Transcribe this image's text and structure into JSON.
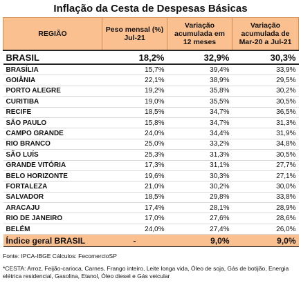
{
  "title": "Inflação da Cesta de Despesas Básicas",
  "headers": {
    "region": "REGIÃO",
    "weight": "Peso mensal (%) Jul-21",
    "var12": "Variação acumulada em 12 meses",
    "varMar": "Variação acumulada de Mar-20 a Jul-21"
  },
  "brasil": {
    "name": "BRASIL",
    "weight": "18,2%",
    "var12": "32,9%",
    "varMar": "30,3%"
  },
  "rows": [
    {
      "name": "BRASÍLIA",
      "weight": "15,7%",
      "var12": "39,4%",
      "varMar": "33,9%"
    },
    {
      "name": "GOIÂNIA",
      "weight": "22,1%",
      "var12": "38,9%",
      "varMar": "29,5%"
    },
    {
      "name": "PORTO ALEGRE",
      "weight": "19,2%",
      "var12": "35,8%",
      "varMar": "30,2%"
    },
    {
      "name": "CURITIBA",
      "weight": "19,0%",
      "var12": "35,5%",
      "varMar": "30,5%"
    },
    {
      "name": "RECIFE",
      "weight": "18,5%",
      "var12": "34,7%",
      "varMar": "36,5%"
    },
    {
      "name": "SÃO PAULO",
      "weight": "15,8%",
      "var12": "34,7%",
      "varMar": "31,3%"
    },
    {
      "name": "CAMPO GRANDE",
      "weight": "24,0%",
      "var12": "34,4%",
      "varMar": "31,9%"
    },
    {
      "name": "RIO BRANCO",
      "weight": "25,0%",
      "var12": "33,2%",
      "varMar": "34,8%"
    },
    {
      "name": "SÃO LUÍS",
      "weight": "25,3%",
      "var12": "31,3%",
      "varMar": "30,5%"
    },
    {
      "name": "GRANDE VITÓRIA",
      "weight": "17,3%",
      "var12": "31,1%",
      "varMar": "27,7%"
    },
    {
      "name": "BELO HORIZONTE",
      "weight": "19,6%",
      "var12": "30,3%",
      "varMar": "27,1%"
    },
    {
      "name": "FORTALEZA",
      "weight": "21,0%",
      "var12": "30,2%",
      "varMar": "30,0%"
    },
    {
      "name": "SALVADOR",
      "weight": "18,5%",
      "var12": "29,8%",
      "varMar": "33,8%"
    },
    {
      "name": "ARACAJU",
      "weight": "17,4%",
      "var12": "28,1%",
      "varMar": "28,9%"
    },
    {
      "name": "RIO DE JANEIRO",
      "weight": "17,0%",
      "var12": "27,6%",
      "varMar": "28,6%"
    },
    {
      "name": "BELÉM",
      "weight": "24,0%",
      "var12": "27,4%",
      "varMar": "26,0%"
    }
  ],
  "indice": {
    "name": "Índice geral BRASIL",
    "weight": "-",
    "var12": "9,0%",
    "varMar": "9,0%"
  },
  "source": "Fonte: IPCA-IBGE Cálculos: FecomercioSP",
  "note": "*CESTA: Arroz, Feijão-carioca, Carnes, Frango inteiro, Leite longa vida, Óleo de soja, Gás de botijão, Energia elétrica residencial, Gasolina, Etanol, Óleo diesel e Gás veicular",
  "colors": {
    "header_fill": "#fac090",
    "header_border": "#d28c4f"
  }
}
